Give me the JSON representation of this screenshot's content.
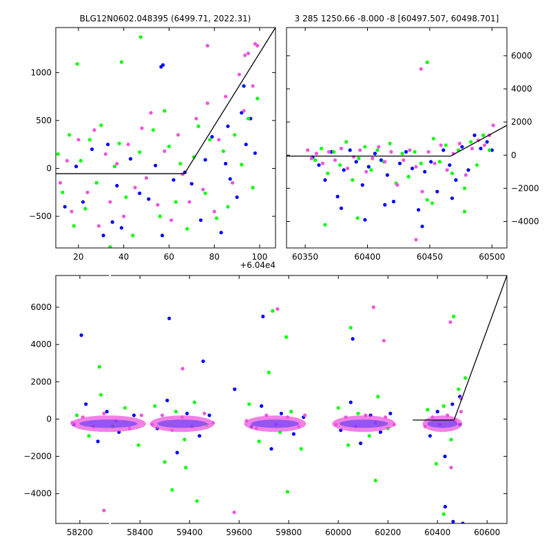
{
  "chart_data": [
    {
      "id": "zoom",
      "type": "scatter",
      "title": "BLG12N0602.048395 (6499.71, 2022.31)",
      "x_offset_label": "+6.04e4",
      "xlim": [
        60410,
        60507
      ],
      "ylim": [
        -830,
        1470
      ],
      "xticks": [
        20,
        40,
        60,
        80,
        100
      ],
      "xtick_labels": [
        "20",
        "40",
        "60",
        "80",
        "100"
      ],
      "yticks": [
        -500,
        0,
        500,
        1000
      ],
      "ytick_labels": [
        "−500",
        "0",
        "500",
        "1000"
      ],
      "y_axis_side": "left",
      "grid": false,
      "model": {
        "x": [
          60410,
          60466.8,
          60507
        ],
        "y": [
          -55,
          -55,
          1470
        ]
      },
      "series": [
        {
          "color": "#0000ff",
          "x": [
            60414,
            60419,
            60422,
            60426,
            60431,
            60433,
            60435,
            60437,
            60439,
            60443,
            60447,
            60451,
            60454,
            60457,
            60462,
            60467,
            60470,
            60474,
            60476,
            60479,
            60483,
            60485,
            60487,
            60490,
            60492,
            60494,
            60496,
            60498,
            60456.5,
            60457.3,
            60486,
            60493
          ],
          "y": [
            -400,
            20,
            -350,
            200,
            -700,
            250,
            -560,
            -180,
            -620,
            100,
            -260,
            -320,
            30,
            -700,
            -120,
            -40,
            -160,
            -540,
            90,
            330,
            -670,
            50,
            -110,
            -300,
            580,
            250,
            520,
            160,
            1060,
            1080,
            440,
            860
          ]
        },
        {
          "color": "#00ff00",
          "x": [
            60411,
            60413,
            60416,
            60418,
            60421,
            60423,
            60425,
            60428,
            60430,
            60434,
            60436,
            60438,
            60441,
            60444,
            60447,
            60450,
            60453,
            60456,
            60458,
            60460,
            60463,
            60465,
            60468,
            60471,
            60473,
            60476,
            60478,
            60481,
            60484,
            60486,
            60489,
            60492,
            60495,
            60497,
            60499,
            60447.5,
            60419.5,
            60439
          ],
          "y": [
            150,
            -250,
            350,
            -600,
            80,
            -420,
            300,
            -150,
            450,
            -820,
            20,
            260,
            -300,
            -700,
            170,
            -100,
            400,
            -500,
            600,
            230,
            -350,
            50,
            -630,
            120,
            440,
            -260,
            300,
            -520,
            180,
            -400,
            350,
            40,
            520,
            -200,
            730,
            1370,
            1090,
            1110
          ]
        },
        {
          "color": "#ee55dd",
          "x": [
            60412,
            60415,
            60417,
            60420,
            60424,
            60427,
            60429,
            60432,
            60434,
            60437,
            60440,
            60442,
            60445,
            60448,
            60450,
            60452,
            60455,
            60458,
            60461,
            60464,
            60466,
            60469,
            60472,
            60475,
            60477,
            60480,
            60482,
            60485,
            60488,
            60491,
            60493,
            60495,
            60497,
            60499,
            60498,
            60493.5,
            60477
          ],
          "y": [
            -150,
            80,
            -450,
            300,
            -250,
            400,
            -600,
            150,
            -350,
            50,
            -500,
            250,
            -200,
            420,
            -100,
            580,
            -380,
            180,
            -540,
            350,
            -60,
            -350,
            520,
            -220,
            680,
            -450,
            300,
            750,
            -150,
            980,
            600,
            1200,
            860,
            1280,
            1300,
            1180,
            1280
          ]
        }
      ]
    },
    {
      "id": "season",
      "type": "scatter",
      "title": "3 285 1250.66 -8.000 -8 [60497.507, 60498.701]",
      "xlim": [
        60335,
        60512
      ],
      "ylim": [
        -5600,
        7700
      ],
      "xticks": [
        60350,
        60400,
        60450,
        60500
      ],
      "xtick_labels": [
        "60350",
        "60400",
        "60450",
        "60500"
      ],
      "yticks": [
        -4000,
        -2000,
        0,
        2000,
        4000,
        6000
      ],
      "ytick_labels": [
        "−4000",
        "−2000",
        "0",
        "2000",
        "4000",
        "6000"
      ],
      "y_axis_side": "right",
      "grid": false,
      "model": {
        "x": [
          60335,
          60466.8,
          60512
        ],
        "y": [
          -55,
          -55,
          1800
        ]
      },
      "series": [
        {
          "color": "#0000ff",
          "x": [
            60356,
            60361,
            60366,
            60371,
            60376,
            60381,
            60386,
            60391,
            60396,
            60401,
            60406,
            60411,
            60416,
            60421,
            60426,
            60431,
            60436,
            60441,
            60446,
            60451,
            60456,
            60461,
            60466,
            60471,
            60476,
            60481,
            60486,
            60491,
            60496,
            60500,
            60379,
            60398,
            60414,
            60444,
            60468
          ],
          "y": [
            -120,
            -600,
            -1500,
            200,
            -2500,
            -900,
            300,
            -400,
            -1800,
            -700,
            100,
            -300,
            -1200,
            -2800,
            -500,
            200,
            -800,
            -3300,
            -1000,
            -400,
            -2200,
            300,
            -600,
            -1500,
            500,
            -900,
            1200,
            400,
            800,
            300,
            -3200,
            -3900,
            -3000,
            -4300,
            -2600
          ]
        },
        {
          "color": "#00ff00",
          "x": [
            60358,
            60363,
            60368,
            60373,
            60378,
            60383,
            60388,
            60393,
            60398,
            60403,
            60408,
            60413,
            60418,
            60423,
            60428,
            60433,
            60438,
            60443,
            60448,
            60453,
            60458,
            60463,
            60468,
            60473,
            60478,
            60483,
            60488,
            60493,
            60498,
            60366,
            60392,
            60452,
            60478,
            60448
          ],
          "y": [
            -300,
            400,
            -1100,
            200,
            -600,
            800,
            -1500,
            -200,
            500,
            -900,
            300,
            -400,
            700,
            -1700,
            100,
            -1300,
            200,
            -500,
            -2700,
            1000,
            -400,
            600,
            -1100,
            300,
            -2000,
            800,
            -600,
            1200,
            300,
            -4200,
            -3800,
            -2900,
            -3400,
            5600
          ]
        },
        {
          "color": "#ee55dd",
          "x": [
            60352,
            60355,
            60359,
            60364,
            60369,
            60374,
            60379,
            60384,
            60389,
            60394,
            60399,
            60404,
            60409,
            60414,
            60419,
            60424,
            60429,
            60434,
            60439,
            60444,
            60449,
            60454,
            60459,
            60464,
            60469,
            60474,
            60479,
            60484,
            60489,
            60494,
            60498,
            60501,
            60443,
            60439
          ],
          "y": [
            300,
            -200,
            100,
            -500,
            200,
            -300,
            400,
            -800,
            -100,
            300,
            -1000,
            -200,
            500,
            -400,
            200,
            -1800,
            -300,
            300,
            -700,
            -2200,
            200,
            -500,
            600,
            -900,
            100,
            700,
            -1200,
            400,
            900,
            600,
            1200,
            1800,
            5200,
            -5100
          ]
        }
      ]
    },
    {
      "id": "full",
      "type": "scatter",
      "title": "",
      "xlim": [
        58120,
        60680
      ],
      "ylim": [
        -5600,
        7700
      ],
      "xticks": [
        58200,
        58400,
        59400,
        59600,
        59800,
        60000,
        60200,
        60400,
        60600
      ],
      "xtick_labels": [
        "58200",
        "58400",
        "59400",
        "59600",
        "59800",
        "60000",
        "60200",
        "60400",
        "60600"
      ],
      "yticks": [
        -4000,
        -2000,
        0,
        2000,
        4000,
        6000
      ],
      "ytick_labels": [
        "−4000",
        "−2000",
        "0",
        "2000",
        "4000",
        "6000"
      ],
      "y_axis_side": "left",
      "grid": false,
      "axis_break": {
        "gap_start": 58420,
        "gap_end": 59230,
        "gap_x": [
          58422,
          58432
        ]
      },
      "model": {
        "x": [
          60300,
          60466.8,
          60680
        ],
        "y": [
          -55,
          -55,
          7700
        ]
      },
      "season_windows": [
        [
          58170,
          58420
        ],
        [
          59240,
          59500
        ],
        [
          59620,
          59870
        ],
        [
          59975,
          60230
        ],
        [
          60340,
          60500
        ]
      ],
      "series": [
        {
          "color": "#0000ff",
          "x": [
            58180,
            58220,
            58260,
            58290,
            58330,
            58380,
            59270,
            59310,
            59350,
            59390,
            59440,
            59480,
            59650,
            59690,
            59730,
            59770,
            59820,
            59860,
            60010,
            60050,
            60090,
            60130,
            60170,
            60210,
            60370,
            60400,
            60430,
            60460,
            60490
          ],
          "y": [
            -300,
            800,
            -1200,
            400,
            -700,
            200,
            -500,
            1000,
            -1800,
            300,
            -900,
            200,
            -400,
            700,
            -1600,
            300,
            -800,
            100,
            -600,
            900,
            -1300,
            200,
            -700,
            300,
            -900,
            400,
            -2000,
            800,
            -300
          ]
        },
        {
          "color": "#00ff00",
          "x": [
            58190,
            58230,
            58270,
            58310,
            58350,
            58395,
            59260,
            59300,
            59345,
            59380,
            59420,
            59470,
            59640,
            59680,
            59720,
            59765,
            59810,
            59850,
            60000,
            60040,
            60080,
            60125,
            60160,
            60200,
            60360,
            60395,
            60425,
            60455,
            60485
          ],
          "y": [
            200,
            -900,
            1300,
            -400,
            600,
            -1400,
            700,
            -2300,
            400,
            -1100,
            900,
            -300,
            800,
            -1200,
            2500,
            -700,
            400,
            -1600,
            600,
            -1400,
            300,
            -900,
            1200,
            -500,
            500,
            -2400,
            700,
            -1100,
            1600
          ]
        },
        {
          "color": "#ee55dd",
          "x": [
            58175,
            58210,
            58245,
            58280,
            58320,
            58365,
            58405,
            59250,
            59290,
            59330,
            59370,
            59410,
            59460,
            59495,
            59630,
            59670,
            59710,
            59750,
            59795,
            59840,
            59865,
            59990,
            60030,
            60070,
            60110,
            60150,
            60190,
            60225,
            60350,
            60380,
            60410,
            60440,
            60470,
            60495
          ],
          "y": [
            -200,
            100,
            -400,
            300,
            -100,
            -500,
            200,
            -300,
            200,
            -600,
            100,
            -400,
            300,
            -200,
            -100,
            -500,
            200,
            -300,
            100,
            -400,
            200,
            -300,
            100,
            -400,
            200,
            -200,
            100,
            -300,
            -400,
            100,
            -300,
            200,
            -100,
            400
          ]
        },
        {
          "color": "#0000ff",
          "x": [
            58205,
            59318,
            59455,
            59582,
            59696,
            60058,
            60431,
            60463,
            60502,
            60490
          ],
          "y": [
            4500,
            5400,
            3100,
            1600,
            5500,
            4300,
            -4700,
            -5500,
            -5600,
            1200
          ]
        },
        {
          "color": "#00ff00",
          "x": [
            58265,
            59330,
            59385,
            59430,
            59735,
            59790,
            59795,
            60050,
            60150,
            60465,
            60425,
            60512
          ],
          "y": [
            2800,
            -3800,
            -2600,
            -4400,
            5800,
            4400,
            -3900,
            4900,
            -3300,
            5500,
            -5100,
            2200
          ]
        },
        {
          "color": "#ee55dd",
          "x": [
            58280,
            59372,
            59580,
            59755,
            60142,
            60184,
            60452,
            60455,
            60495
          ],
          "y": [
            -4900,
            2700,
            -5000,
            5900,
            6000,
            4200,
            5200,
            -2600,
            1100
          ]
        }
      ]
    }
  ]
}
